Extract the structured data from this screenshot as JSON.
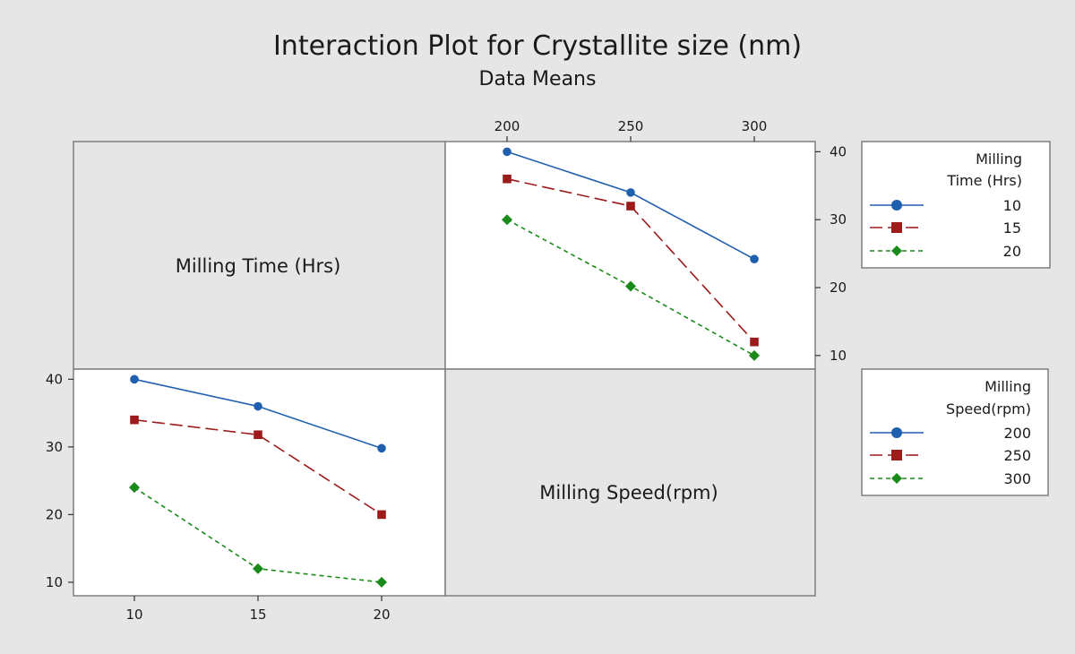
{
  "chart_data": {
    "type": "line",
    "title": "Interaction Plot for Crystallite size (nm)",
    "subtitle": "Data Means",
    "colors": {
      "series_1": "#1f5fae",
      "series_2": "#9c1b1b",
      "series_3": "#1a8a1a",
      "background": "#e6e6e6",
      "panel": "#ffffff"
    },
    "diagonal_labels": {
      "milling_time": "Milling Time (Hrs)",
      "milling_speed": "Milling Speed(rpm)"
    },
    "panels": [
      {
        "id": "speed-x-by-time",
        "x_categories": [
          "200",
          "250",
          "300"
        ],
        "y_ticks": [
          "10",
          "20",
          "30",
          "40"
        ],
        "ylim": [
          8,
          41.5
        ],
        "series": [
          {
            "name": "10",
            "values": [
              40,
              34,
              24.2
            ],
            "marker": "circle",
            "dash": "solid"
          },
          {
            "name": "15",
            "values": [
              36,
              32,
              12
            ],
            "marker": "square",
            "dash": "longdash"
          },
          {
            "name": "20",
            "values": [
              30,
              20.2,
              10
            ],
            "marker": "diamond",
            "dash": "shortdash"
          }
        ]
      },
      {
        "id": "time-x-by-speed",
        "x_categories": [
          "10",
          "15",
          "20"
        ],
        "y_ticks": [
          "10",
          "20",
          "30",
          "40"
        ],
        "ylim": [
          8,
          41.5
        ],
        "series": [
          {
            "name": "200",
            "values": [
              40,
              36,
              29.8
            ],
            "marker": "circle",
            "dash": "solid"
          },
          {
            "name": "250",
            "values": [
              34,
              31.8,
              20
            ],
            "marker": "square",
            "dash": "longdash"
          },
          {
            "name": "300",
            "values": [
              24,
              12,
              10
            ],
            "marker": "diamond",
            "dash": "shortdash"
          }
        ]
      }
    ],
    "legends": [
      {
        "title_line1": "Milling",
        "title_line2": "Time (Hrs)",
        "items": [
          "10",
          "15",
          "20"
        ]
      },
      {
        "title_line1": "Milling",
        "title_line2": "Speed(rpm)",
        "items": [
          "200",
          "250",
          "300"
        ]
      }
    ]
  }
}
